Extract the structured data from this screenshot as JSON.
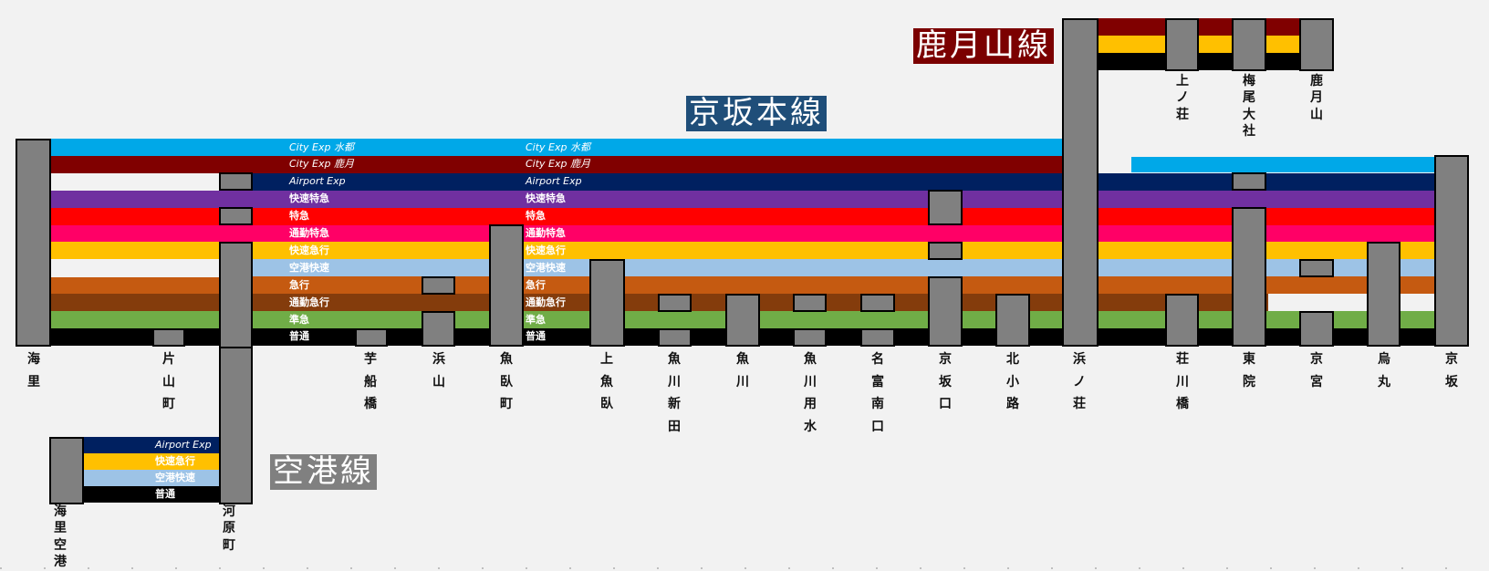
{
  "line_titles": {
    "main": "京坂本線",
    "kazuki": "鹿月山線",
    "airport": "空港線"
  },
  "services": [
    {
      "name": "City Exp 水都",
      "color": "#00a8e8"
    },
    {
      "name": "City Exp 鹿月",
      "color": "#800000"
    },
    {
      "name": "Airport Exp",
      "color": "#002060"
    },
    {
      "name": "快速特急",
      "color": "#7030a0"
    },
    {
      "name": "特急",
      "color": "#ff0000"
    },
    {
      "name": "通勤特急",
      "color": "#ff0066"
    },
    {
      "name": "快速急行",
      "color": "#ffc000"
    },
    {
      "name": "空港快速",
      "color": "#9dc3e6"
    },
    {
      "name": "急行",
      "color": "#c55a11"
    },
    {
      "name": "通勤急行",
      "color": "#843c0c"
    },
    {
      "name": "準急",
      "color": "#70ad47"
    },
    {
      "name": "普通",
      "color": "#000000"
    }
  ],
  "service_label_groups": [
    {
      "services": [
        "City Exp 水都",
        "City Exp 鹿月",
        "Airport Exp",
        "快速特急",
        "特急",
        "通勤特急",
        "快速急行",
        "空港快速",
        "急行",
        "通勤急行",
        "準急",
        "普通"
      ]
    },
    {
      "services": [
        "City Exp 水都",
        "City Exp 鹿月",
        "Airport Exp",
        "快速特急",
        "特急",
        "通勤特急",
        "快速急行",
        "空港快速",
        "急行",
        "通勤急行",
        "準急",
        "普通"
      ]
    },
    {
      "services": [
        "Airport Exp",
        "快速急行",
        "空港快速",
        "普通"
      ]
    }
  ],
  "stations": {
    "main": [
      "海里",
      "片山町",
      "芋船橋",
      "浜山",
      "魚臥町",
      "上魚臥",
      "魚川新田",
      "魚川",
      "魚川用水",
      "名富南口",
      "京坂口",
      "北小路",
      "浜ノ荘",
      "荘川橋",
      "東院",
      "京宮",
      "烏丸",
      "京坂"
    ],
    "kazuki": [
      "上ノ荘",
      "梅尾大社",
      "鹿月山"
    ],
    "airport": [
      "海里空港",
      "河原町"
    ]
  }
}
